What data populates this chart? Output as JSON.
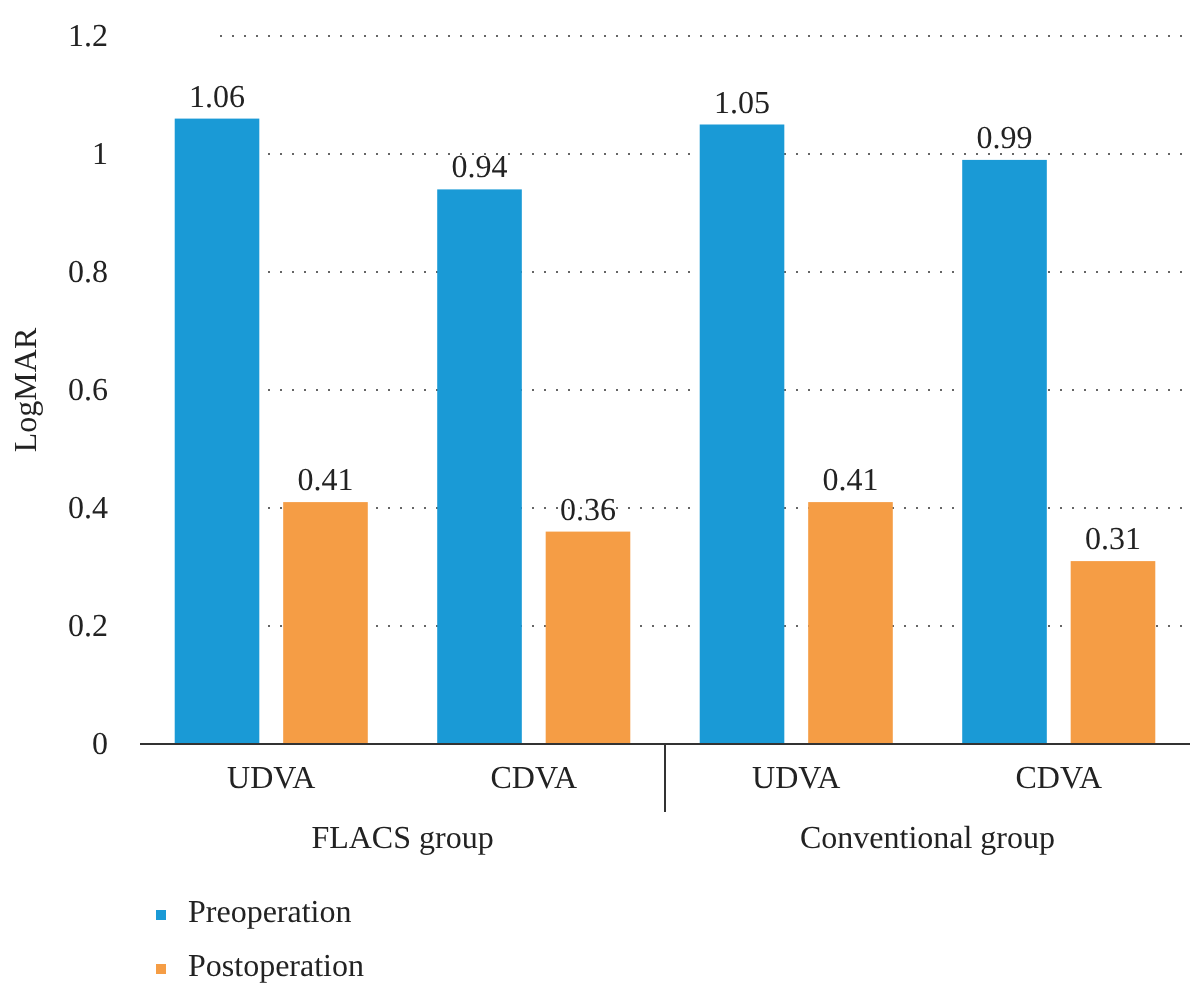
{
  "chart_data": {
    "type": "bar",
    "ylabel": "LogMAR",
    "categories": [
      "UDVA",
      "CDVA",
      "UDVA",
      "CDVA"
    ],
    "annotations": [
      "FLACS group",
      "Conventional group"
    ],
    "series": [
      {
        "name": "Preoperation",
        "color": "#1a9ad6",
        "values": [
          1.06,
          0.94,
          1.05,
          0.99
        ]
      },
      {
        "name": "Postoperation",
        "color": "#f59d45",
        "values": [
          0.41,
          0.36,
          0.41,
          0.31
        ]
      }
    ],
    "ylim": [
      0,
      1.2
    ],
    "yticks": [
      0,
      0.2,
      0.4,
      0.6,
      0.8,
      1,
      1.2
    ],
    "grid": "y",
    "legend": "bottom left",
    "data_labels": true
  }
}
